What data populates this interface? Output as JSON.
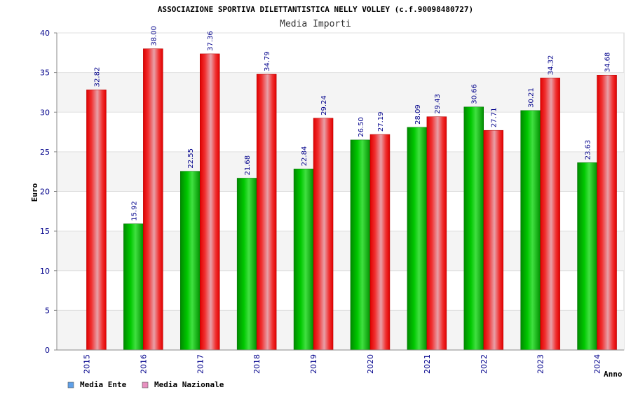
{
  "chart_data": {
    "type": "bar",
    "title": "ASSOCIAZIONE SPORTIVA DILETTANTISTICA NELLY VOLLEY (c.f.90098480727)",
    "subtitle": "Media Importi",
    "xlabel": "Anno",
    "ylabel": "Euro",
    "ylim": [
      0,
      40
    ],
    "yticks": [
      "0",
      "5",
      "10",
      "15",
      "20",
      "25",
      "30",
      "35",
      "40"
    ],
    "categories": [
      "2015",
      "2016",
      "2017",
      "2018",
      "2019",
      "2020",
      "2021",
      "2022",
      "2023",
      "2024"
    ],
    "series": [
      {
        "name": "Media Ente",
        "values": [
          null,
          15.92,
          22.55,
          21.68,
          22.84,
          26.5,
          28.09,
          30.66,
          30.21,
          23.63
        ],
        "labels": [
          "",
          "15.92",
          "22.55",
          "21.68",
          "22.84",
          "26.50",
          "28.09",
          "30.66",
          "30.21",
          "23.63"
        ],
        "color": "#00a000",
        "legend_color": "#5fa0e8"
      },
      {
        "name": "Media Nazionale",
        "values": [
          32.82,
          38.0,
          37.36,
          34.79,
          29.24,
          27.19,
          29.43,
          27.71,
          34.32,
          34.68
        ],
        "labels": [
          "32.82",
          "38.00",
          "37.36",
          "34.79",
          "29.24",
          "27.19",
          "29.43",
          "27.71",
          "34.32",
          "34.68"
        ],
        "color": "#ee0000",
        "legend_color": "#e890c0"
      }
    ],
    "grid": true,
    "legend_position": "bottom-left"
  }
}
